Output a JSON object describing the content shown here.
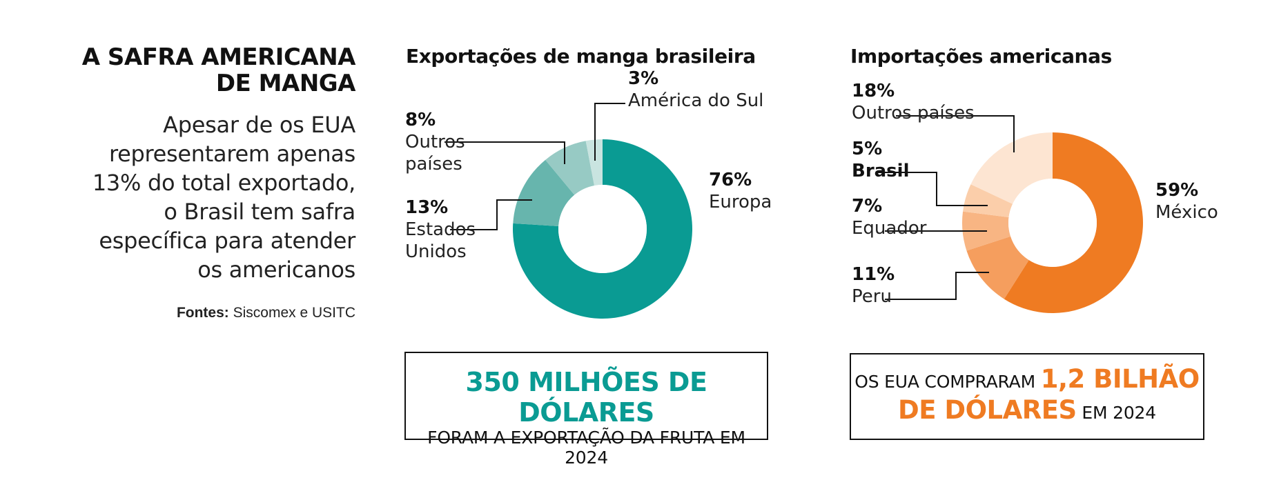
{
  "headline": {
    "line1": "A SAFRA AMERICANA",
    "line2": "DE MANGA"
  },
  "intro": [
    "Apesar de os EUA",
    "representarem apenas",
    "13% do total exportado,",
    "o Brasil tem safra",
    "específica para atender",
    "os americanos"
  ],
  "sources": {
    "label": "Fontes:",
    "text": " Siscomex e USITC"
  },
  "colors": {
    "teal": "#0a9b93",
    "orange": "#ef7b22"
  },
  "chart_data": [
    {
      "type": "pie",
      "title": "Exportações de manga brasileira",
      "slices": [
        {
          "name": "Europa",
          "value": 76,
          "label_pct": "76%",
          "label_lines": [
            "Europa"
          ],
          "color": "#0a9b93"
        },
        {
          "name": "Estados Unidos",
          "value": 13,
          "label_pct": "13%",
          "label_lines": [
            "Estados",
            "Unidos"
          ],
          "color": "#67b5ad"
        },
        {
          "name": "Outros países",
          "value": 8,
          "label_pct": "8%",
          "label_lines": [
            "Outros",
            "países"
          ],
          "color": "#97cac4"
        },
        {
          "name": "América do Sul",
          "value": 3,
          "label_pct": "3%",
          "label_lines": [
            "América do Sul"
          ],
          "color": "#c9e4e0"
        }
      ]
    },
    {
      "type": "pie",
      "title": "Importações americanas",
      "slices": [
        {
          "name": "México",
          "value": 59,
          "label_pct": "59%",
          "label_lines": [
            "México"
          ],
          "color": "#ef7b22"
        },
        {
          "name": "Peru",
          "value": 11,
          "label_pct": "11%",
          "label_lines": [
            "Peru"
          ],
          "color": "#f59e5e"
        },
        {
          "name": "Equador",
          "value": 7,
          "label_pct": "7%",
          "label_lines": [
            "Equador"
          ],
          "color": "#f8b583"
        },
        {
          "name": "Brasil",
          "value": 5,
          "label_pct": "5%",
          "label_lines": [
            "Brasil"
          ],
          "color": "#fbceaa"
        },
        {
          "name": "Outros países",
          "value": 18,
          "label_pct": "18%",
          "label_lines": [
            "Outros países"
          ],
          "color": "#fde5d2"
        }
      ]
    }
  ],
  "callout1": {
    "big": "350 MILHÕES DE DÓLARES",
    "small": "FORAM A EXPORTAÇÃO DA FRUTA EM 2024"
  },
  "callout2": {
    "pre": "OS EUA COMPRARAM ",
    "big1": "1,2 BILHÃO",
    "big2": "DE DÓLARES",
    "post": " EM 2024"
  }
}
